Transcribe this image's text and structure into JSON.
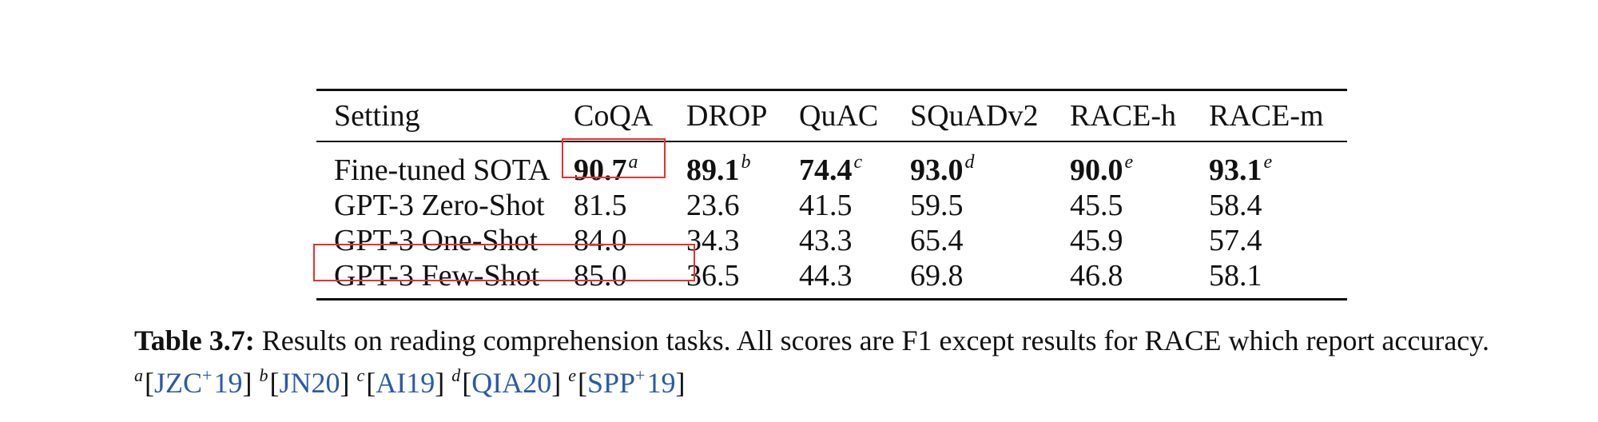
{
  "table": {
    "header": [
      "Setting",
      "CoQA",
      "DROP",
      "QuAC",
      "SQuADv2",
      "RACE-h",
      "RACE-m"
    ],
    "rows": [
      {
        "setting": "Fine-tuned SOTA",
        "cells": [
          {
            "value": "90.7",
            "sup": "a"
          },
          {
            "value": "89.1",
            "sup": "b"
          },
          {
            "value": "74.4",
            "sup": "c"
          },
          {
            "value": "93.0",
            "sup": "d"
          },
          {
            "value": "90.0",
            "sup": "e"
          },
          {
            "value": "93.1",
            "sup": "e"
          }
        ]
      },
      {
        "setting": "GPT-3 Zero-Shot",
        "cells": [
          "81.5",
          "23.6",
          "41.5",
          "59.5",
          "45.5",
          "58.4"
        ]
      },
      {
        "setting": "GPT-3 One-Shot",
        "cells": [
          "84.0",
          "34.3",
          "43.3",
          "65.4",
          "45.9",
          "57.4"
        ]
      },
      {
        "setting": "GPT-3 Few-Shot",
        "cells": [
          "85.0",
          "36.5",
          "44.3",
          "69.8",
          "46.8",
          "58.1"
        ]
      }
    ]
  },
  "caption": {
    "label": "Table 3.7:",
    "text": " Results on reading comprehension tasks. All scores are F1 except results for RACE which report accuracy.",
    "refs": [
      {
        "sup": "a",
        "open": "[",
        "text": "JZC",
        "plus": "+",
        "year": "19",
        "close": "]"
      },
      {
        "sup": "b",
        "open": "[",
        "text": "JN20",
        "plus": "",
        "year": "",
        "close": "]"
      },
      {
        "sup": "c",
        "open": "[",
        "text": "AI19",
        "plus": "",
        "year": "",
        "close": "]"
      },
      {
        "sup": "d",
        "open": "[",
        "text": "QIA20",
        "plus": "",
        "year": "",
        "close": "]"
      },
      {
        "sup": "e",
        "open": "[",
        "text": "SPP",
        "plus": "+",
        "year": "19",
        "close": "]"
      }
    ]
  },
  "colors": {
    "highlight": "#e8302e",
    "link": "#2a5aa8"
  }
}
